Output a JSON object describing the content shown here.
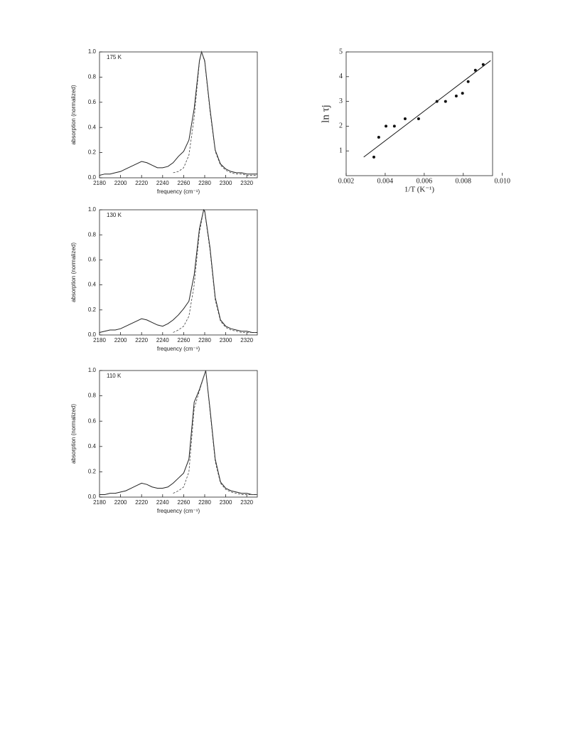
{
  "chart_data": [
    {
      "type": "line",
      "annotation": "175 K",
      "xlabel": "frequency (cm⁻¹)",
      "ylabel": "absorption (normalized)",
      "x": [
        2180,
        2185,
        2190,
        2195,
        2200,
        2205,
        2210,
        2215,
        2220,
        2225,
        2230,
        2235,
        2240,
        2245,
        2250,
        2255,
        2260,
        2265,
        2270,
        2275,
        2277,
        2280,
        2285,
        2290,
        2295,
        2300,
        2305,
        2310,
        2315,
        2320,
        2325,
        2330
      ],
      "series": [
        {
          "style": "solid",
          "color": "#222",
          "values": [
            0.02,
            0.03,
            0.03,
            0.04,
            0.05,
            0.07,
            0.09,
            0.11,
            0.13,
            0.12,
            0.1,
            0.08,
            0.08,
            0.09,
            0.12,
            0.17,
            0.21,
            0.3,
            0.55,
            0.93,
            1.0,
            0.93,
            0.55,
            0.22,
            0.11,
            0.07,
            0.05,
            0.04,
            0.04,
            0.03,
            0.03,
            0.03
          ]
        },
        {
          "style": "dashed",
          "color": "#444",
          "values": [
            null,
            null,
            null,
            null,
            null,
            null,
            null,
            null,
            null,
            null,
            null,
            null,
            null,
            null,
            0.04,
            0.05,
            0.08,
            0.18,
            0.48,
            0.92,
            1.0,
            0.92,
            0.53,
            0.21,
            0.1,
            0.06,
            0.04,
            0.03,
            0.03,
            0.02,
            0.02,
            0.02
          ]
        }
      ],
      "xlim": [
        2180,
        2330
      ],
      "ylim": [
        0,
        1
      ],
      "xticks": [
        2180,
        2200,
        2220,
        2240,
        2260,
        2280,
        2300,
        2320
      ],
      "yticks": [
        {
          "value": 0,
          "label": "0.0"
        },
        0.2,
        0.4,
        0.6,
        0.8,
        {
          "value": 1,
          "label": "1.0"
        }
      ]
    },
    {
      "type": "line",
      "annotation": "130 K",
      "xlabel": "frequency (cm⁻¹)",
      "ylabel": "absorption (normalized)",
      "x": [
        2180,
        2185,
        2190,
        2195,
        2200,
        2205,
        2210,
        2215,
        2220,
        2225,
        2230,
        2235,
        2240,
        2245,
        2250,
        2255,
        2260,
        2265,
        2270,
        2275,
        2279,
        2280,
        2285,
        2290,
        2295,
        2300,
        2305,
        2310,
        2315,
        2320,
        2325,
        2330
      ],
      "series": [
        {
          "style": "solid",
          "color": "#222",
          "values": [
            0.02,
            0.03,
            0.04,
            0.04,
            0.05,
            0.07,
            0.09,
            0.11,
            0.13,
            0.12,
            0.1,
            0.08,
            0.07,
            0.09,
            0.12,
            0.16,
            0.21,
            0.27,
            0.48,
            0.85,
            1.0,
            0.99,
            0.7,
            0.3,
            0.12,
            0.07,
            0.05,
            0.04,
            0.03,
            0.03,
            0.02,
            0.02
          ]
        },
        {
          "style": "dashed",
          "color": "#444",
          "values": [
            null,
            null,
            null,
            null,
            null,
            null,
            null,
            null,
            null,
            null,
            null,
            null,
            null,
            null,
            0.02,
            0.04,
            0.07,
            0.15,
            0.4,
            0.82,
            1.0,
            0.98,
            0.68,
            0.28,
            0.11,
            0.06,
            0.04,
            0.03,
            0.02,
            0.02,
            0.02,
            0.02
          ]
        }
      ],
      "xlim": [
        2180,
        2330
      ],
      "ylim": [
        0,
        1
      ],
      "xticks": [
        2180,
        2200,
        2220,
        2240,
        2260,
        2280,
        2300,
        2320
      ],
      "yticks": [
        {
          "value": 0,
          "label": "0.0"
        },
        0.2,
        0.4,
        0.6,
        0.8,
        {
          "value": 1,
          "label": "1.0"
        }
      ]
    },
    {
      "type": "line",
      "annotation": "110 K",
      "xlabel": "frequency (cm⁻¹)",
      "ylabel": "absorption (normalized)",
      "x": [
        2180,
        2185,
        2190,
        2195,
        2200,
        2205,
        2210,
        2215,
        2220,
        2225,
        2230,
        2235,
        2240,
        2245,
        2250,
        2255,
        2260,
        2265,
        2270,
        2275,
        2281,
        2285,
        2290,
        2295,
        2300,
        2305,
        2310,
        2315,
        2320,
        2325,
        2330
      ],
      "series": [
        {
          "style": "solid",
          "color": "#222",
          "values": [
            0.02,
            0.02,
            0.03,
            0.03,
            0.04,
            0.05,
            0.07,
            0.09,
            0.11,
            0.1,
            0.08,
            0.07,
            0.07,
            0.08,
            0.11,
            0.15,
            0.19,
            0.3,
            0.75,
            0.85,
            1.0,
            0.7,
            0.3,
            0.12,
            0.07,
            0.05,
            0.04,
            0.03,
            0.03,
            0.02,
            0.02
          ]
        },
        {
          "style": "dashed",
          "color": "#444",
          "values": [
            null,
            null,
            null,
            null,
            null,
            null,
            null,
            null,
            null,
            null,
            null,
            null,
            null,
            null,
            0.03,
            0.05,
            0.08,
            0.2,
            0.7,
            0.84,
            1.0,
            0.68,
            0.28,
            0.11,
            0.06,
            0.04,
            0.03,
            0.02,
            0.02,
            0.02,
            0.02
          ]
        }
      ],
      "xlim": [
        2180,
        2330
      ],
      "ylim": [
        0,
        1
      ],
      "xticks": [
        2180,
        2200,
        2220,
        2240,
        2260,
        2280,
        2300,
        2320
      ],
      "yticks": [
        {
          "value": 0,
          "label": "0.0"
        },
        0.2,
        0.4,
        0.6,
        0.8,
        {
          "value": 1,
          "label": "1.0"
        }
      ]
    },
    {
      "type": "scatter",
      "xlabel": "1/T (K⁻¹)",
      "ylabel": "ln τj",
      "points": {
        "x": [
          0.00342,
          0.00367,
          0.00404,
          0.00447,
          0.00502,
          0.00571,
          0.00665,
          0.00709,
          0.00764,
          0.00796,
          0.00825,
          0.00862,
          0.00902
        ],
        "y": [
          0.75,
          1.55,
          2.0,
          2.0,
          2.3,
          2.3,
          3.0,
          3.0,
          3.22,
          3.33,
          3.8,
          4.26,
          4.49
        ]
      },
      "fit": {
        "x": [
          0.0029,
          0.0094
        ],
        "y": [
          0.75,
          4.65
        ]
      },
      "color": "#111",
      "xlim": [
        0.002,
        0.0095
      ],
      "ylim": [
        0,
        5
      ],
      "xticks": [
        0.002,
        0.004,
        0.006,
        0.008,
        {
          "value": 0.01,
          "label": "0.010"
        }
      ],
      "yticks": [
        1,
        2,
        3,
        4,
        5
      ]
    }
  ]
}
